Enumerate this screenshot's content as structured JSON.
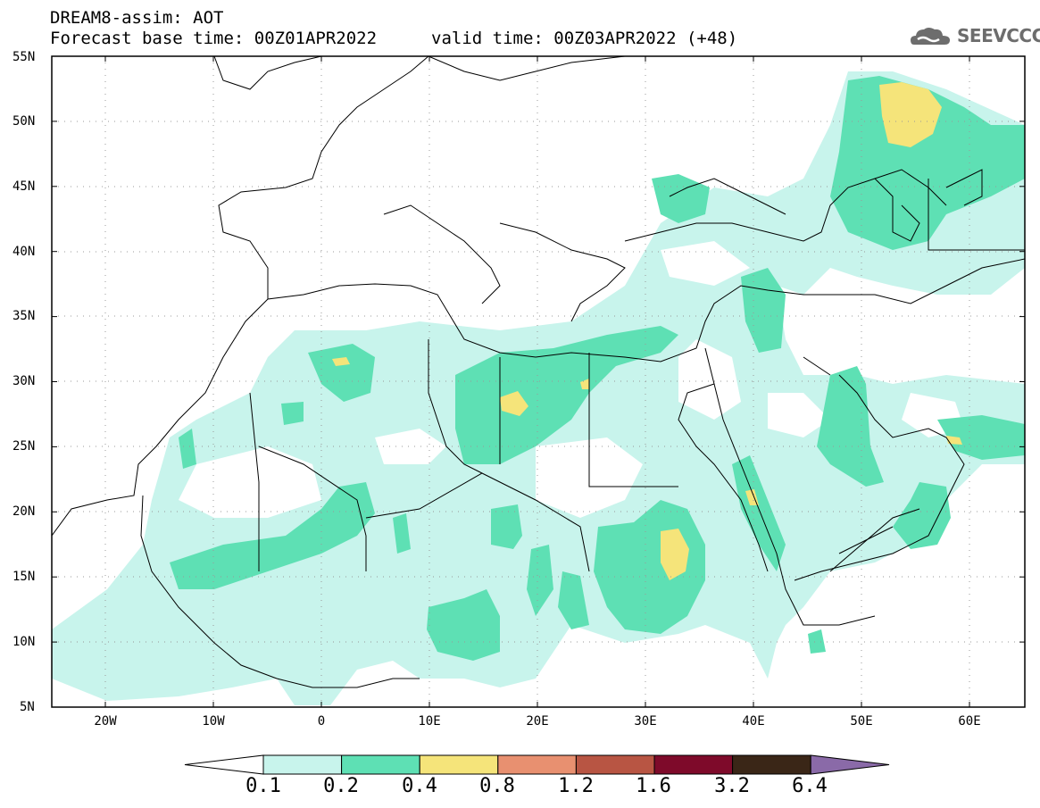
{
  "header": {
    "line1": "DREAM8-assim: AOT",
    "line2": "Forecast base time: 00Z01APR2022",
    "valid": "valid time: 00Z03APR2022 (+48)"
  },
  "logo": {
    "text": "SEEVCCC",
    "icon": "cloud-icon"
  },
  "map": {
    "lat_labels": [
      "55N",
      "50N",
      "45N",
      "40N",
      "35N",
      "30N",
      "25N",
      "20N",
      "15N",
      "10N",
      "5N"
    ],
    "lon_labels": [
      "20W",
      "10W",
      "0",
      "10E",
      "20E",
      "30E",
      "40E",
      "50E",
      "60E"
    ],
    "lon_range": [
      -25,
      65
    ],
    "lat_range": [
      5,
      55
    ],
    "gridlines": true
  },
  "colorbar": {
    "labels": [
      "0.1",
      "0.2",
      "0.4",
      "0.8",
      "1.2",
      "1.6",
      "3.2",
      "6.4"
    ],
    "colors": [
      "#ffffff",
      "#c8f4ec",
      "#5ee0b4",
      "#f5e47a",
      "#e89070",
      "#b85543",
      "#7e0a2a",
      "#3a2617",
      "#8a6aa8"
    ]
  }
}
